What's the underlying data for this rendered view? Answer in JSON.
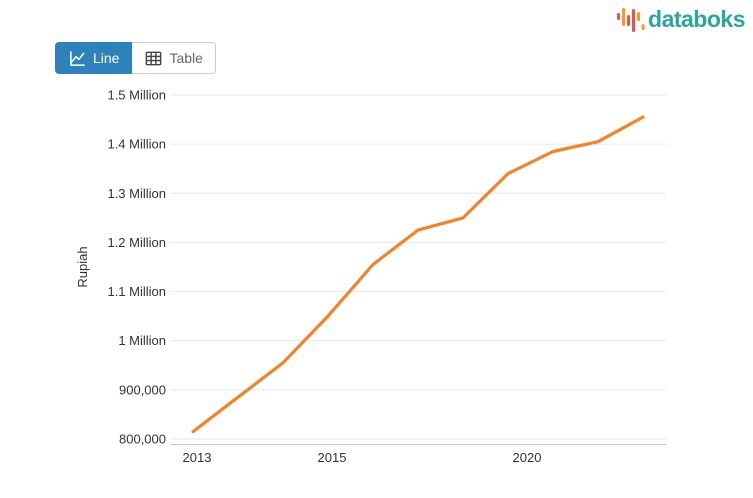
{
  "logo": {
    "text": "databoks",
    "color": "#2AA69E",
    "icon_colors": {
      "red": "#E2574C",
      "orange": "#F59A23"
    }
  },
  "toolbar": {
    "active_color": "#2E81BA",
    "line_button": {
      "label": "Line",
      "active": true
    },
    "table_button": {
      "label": "Table",
      "active": false
    }
  },
  "chart_data": {
    "type": "line",
    "x": [
      "2013",
      "2014",
      "2015",
      "2016",
      "2017",
      "2018",
      "2019",
      "2020",
      "2021",
      "2022",
      "2023"
    ],
    "values": [
      815000,
      885000,
      955000,
      1050000,
      1155000,
      1225000,
      1250000,
      1340000,
      1385000,
      1405000,
      1455000
    ],
    "series": [
      {
        "name": "Rupiah",
        "values": [
          815000,
          885000,
          955000,
          1050000,
          1155000,
          1225000,
          1250000,
          1340000,
          1385000,
          1405000,
          1455000
        ]
      }
    ],
    "title": "",
    "xlabel": "",
    "ylabel": "Rupiah",
    "ylim": [
      800000,
      1500000
    ],
    "grid": true,
    "legend": "none",
    "line_color": "#F4822A",
    "y_ticks": [
      {
        "label": "1.5 Million",
        "value": 1500000
      },
      {
        "label": "1.4 Million",
        "value": 1400000
      },
      {
        "label": "1.3 Million",
        "value": 1300000
      },
      {
        "label": "1.2 Million",
        "value": 1200000
      },
      {
        "label": "1.1 Million",
        "value": 1100000
      },
      {
        "label": "1 Million",
        "value": 1000000
      },
      {
        "label": "900,000",
        "value": 900000
      },
      {
        "label": "800,000",
        "value": 800000
      }
    ],
    "x_tick_labels": [
      "2013",
      "2015",
      "2020"
    ]
  }
}
